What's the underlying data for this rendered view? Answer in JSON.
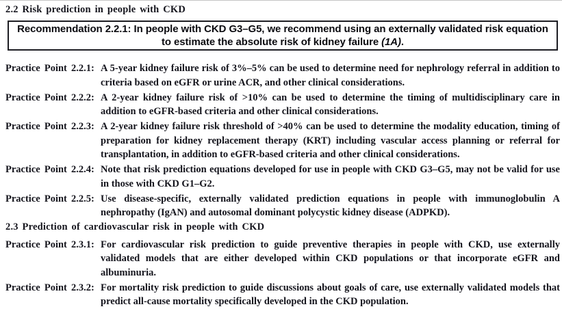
{
  "page": {
    "section_2_2": {
      "heading": "2.2 Risk prediction in people with CKD"
    },
    "recommendation": {
      "text": "Recommendation 2.2.1: In people with CKD G3–G5, we recommend using an externally validated risk equation to estimate the absolute risk of kidney failure ",
      "grade": "(1A)",
      "suffix": "."
    },
    "practice_points_2_2": [
      {
        "label": "Practice Point 2.2.1:",
        "body": "A 5-year kidney failure risk of 3%–5% can be used to determine need for nephrology referral in addition to criteria based on eGFR or urine ACR, and other clinical considerations."
      },
      {
        "label": "Practice Point 2.2.2:",
        "body": "A 2-year kidney failure risk of >10% can be used to determine the timing of multidisciplinary care in addition to eGFR-based criteria and other clinical considerations."
      },
      {
        "label": "Practice Point 2.2.3:",
        "body": "A 2-year kidney failure risk threshold of >40% can be used to determine the modality education, timing of preparation for kidney replacement therapy (KRT) including vascular access planning or referral for transplantation, in addition to eGFR-based criteria and other clinical considerations."
      },
      {
        "label": "Practice Point 2.2.4:",
        "body": "Note that risk prediction equations developed for use in people with CKD G3–G5, may not be valid for use in those with CKD G1–G2."
      },
      {
        "label": "Practice Point 2.2.5:",
        "body": "Use disease-specific, externally validated prediction equations in people with immunoglobulin A nephropathy (IgAN) and autosomal dominant polycystic kidney disease (ADPKD)."
      }
    ],
    "section_2_3": {
      "heading": "2.3 Prediction of cardiovascular risk in people with CKD"
    },
    "practice_points_2_3": [
      {
        "label": "Practice Point 2.3.1:",
        "body": "For cardiovascular risk prediction to guide preventive therapies in people with CKD, use externally validated models that are either developed within CKD populations or that incorporate eGFR and albuminuria."
      },
      {
        "label": "Practice Point 2.3.2:",
        "body": "For mortality risk prediction to guide discussions about goals of care, use externally validated models that predict all-cause mortality specifically developed in the CKD population."
      }
    ]
  }
}
